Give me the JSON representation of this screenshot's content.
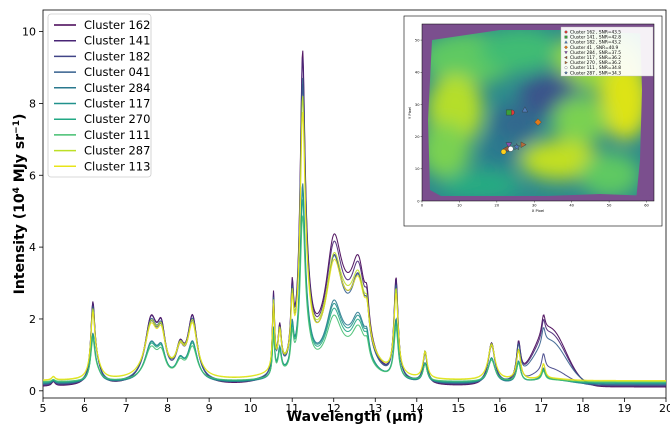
{
  "chart_data": [
    {
      "type": "line",
      "xlabel": "Wavelength (μm)",
      "ylabel_main": "Intensity (10",
      "ylabel_sup1": "4",
      "ylabel_unit": " MJy sr",
      "ylabel_sup2": "−1",
      "ylabel_close": ")",
      "xlim": [
        5,
        20
      ],
      "ylim": [
        -0.2,
        10.6
      ],
      "xticks": [
        5,
        6,
        7,
        8,
        9,
        10,
        11,
        12,
        13,
        14,
        15,
        16,
        17,
        18,
        19,
        20
      ],
      "yticks": [
        0,
        2,
        4,
        6,
        8,
        10
      ],
      "legend_position": "top-left",
      "series": [
        {
          "name": "Cluster 162",
          "color": "#440154",
          "scale": 1.0,
          "plateau": 0.55,
          "broad": 1.15,
          "long": 1.6
        },
        {
          "name": "Cluster 141",
          "color": "#482475",
          "scale": 0.98,
          "plateau": 0.5,
          "broad": 1.0,
          "long": 1.45
        },
        {
          "name": "Cluster 182",
          "color": "#414487",
          "scale": 0.9,
          "plateau": 0.45,
          "broad": 0.85,
          "long": 0.45
        },
        {
          "name": "Cluster 041",
          "color": "#355f8d",
          "scale": 0.92,
          "plateau": 0.42,
          "broad": 0.75,
          "long": 1.2
        },
        {
          "name": "Cluster 284",
          "color": "#2a788e",
          "scale": 0.6,
          "plateau": 0.3,
          "broad": 0.45,
          "long": 0.15
        },
        {
          "name": "Cluster 117",
          "color": "#21918c",
          "scale": 0.58,
          "plateau": 0.28,
          "broad": 0.4,
          "long": 0.1
        },
        {
          "name": "Cluster 270",
          "color": "#22a884",
          "scale": 0.55,
          "plateau": 0.25,
          "broad": 0.35,
          "long": 0.08
        },
        {
          "name": "Cluster 111",
          "color": "#44bf70",
          "scale": 0.5,
          "plateau": 0.22,
          "broad": 0.3,
          "long": 0.05
        },
        {
          "name": "Cluster 287",
          "color": "#bddf26",
          "scale": 0.85,
          "plateau": 0.45,
          "broad": 0.95,
          "long": 0.05
        },
        {
          "name": "Cluster 113",
          "color": "#e8e419",
          "scale": 0.8,
          "plateau": 0.42,
          "broad": 0.9,
          "long": 0.05
        }
      ],
      "peaks": [
        {
          "x": 5.25,
          "h": 0.12,
          "w": 0.05
        },
        {
          "x": 6.2,
          "h": 2.1,
          "w": 0.06
        },
        {
          "x": 6.3,
          "h": 0.4,
          "w": 0.12
        },
        {
          "x": 7.6,
          "h": 1.7,
          "w": 0.18
        },
        {
          "x": 7.85,
          "h": 1.2,
          "w": 0.12
        },
        {
          "x": 8.3,
          "h": 0.8,
          "w": 0.12
        },
        {
          "x": 8.6,
          "h": 1.8,
          "w": 0.14
        },
        {
          "x": 10.55,
          "h": 2.2,
          "w": 0.03
        },
        {
          "x": 10.7,
          "h": 1.2,
          "w": 0.05
        },
        {
          "x": 11.0,
          "h": 1.8,
          "w": 0.04
        },
        {
          "x": 11.25,
          "h": 7.8,
          "w": 0.07
        },
        {
          "x": 11.35,
          "h": 1.2,
          "w": 0.15
        },
        {
          "x": 12.0,
          "h": 2.5,
          "w": 0.22
        },
        {
          "x": 12.6,
          "h": 2.0,
          "w": 0.2
        },
        {
          "x": 12.8,
          "h": 0.8,
          "w": 0.06
        },
        {
          "x": 13.5,
          "h": 2.8,
          "w": 0.06
        },
        {
          "x": 14.2,
          "h": 0.9,
          "w": 0.06
        },
        {
          "x": 15.8,
          "h": 1.2,
          "w": 0.1
        },
        {
          "x": 16.45,
          "h": 1.0,
          "w": 0.06
        },
        {
          "x": 17.05,
          "h": 0.5,
          "w": 0.05
        }
      ]
    },
    {
      "type": "heatmap",
      "title": "",
      "xlabel": "X Pixel",
      "ylabel": "Y Pixel",
      "xticks": [
        0,
        10,
        20,
        30,
        40,
        50,
        60
      ],
      "yticks": [
        0,
        10,
        20,
        30,
        40,
        50
      ],
      "xlim": [
        0,
        62
      ],
      "ylim": [
        0,
        55
      ],
      "colormap": "viridis",
      "legend_position": "top-right",
      "markers": [
        {
          "label": "Cluster 162 , SNR=43.5",
          "x": 24,
          "y": 27.5,
          "shape": "circle",
          "color": "#e03a3a"
        },
        {
          "label": "Cluster 141 , SNR=42.8",
          "x": 23.2,
          "y": 27.5,
          "shape": "square",
          "color": "#3aa03a"
        },
        {
          "label": "Cluster 182 , SNR=43.2",
          "x": 27.5,
          "y": 28.3,
          "shape": "triangle-up",
          "color": "#4f7ab8"
        },
        {
          "label": "Cluster 41 , SNR=40.9",
          "x": 31,
          "y": 24.5,
          "shape": "diamond",
          "color": "#e07a1a"
        },
        {
          "label": "Cluster 284 , SNR=37.5",
          "x": 23.2,
          "y": 17.5,
          "shape": "triangle-down",
          "color": "#8a4fb0"
        },
        {
          "label": "Cluster 117 , SNR=36.2",
          "x": 22.5,
          "y": 16.2,
          "shape": "triangle-left",
          "color": "#9a5a3a"
        },
        {
          "label": "Cluster 270 , SNR=36.2",
          "x": 27,
          "y": 17.5,
          "shape": "triangle-right",
          "color": "#b36b3a"
        },
        {
          "label": "Cluster 111 , SNR=34.8",
          "x": 23.7,
          "y": 16.2,
          "shape": "circle",
          "color": "#ffffff"
        },
        {
          "label": "Cluster 287 , SNR=34.3",
          "x": 25.3,
          "y": 16.8,
          "shape": "star",
          "color": "#4f7ab8"
        },
        {
          "label": "",
          "x": 21.8,
          "y": 15.3,
          "shape": "circle",
          "color": "#ffd21a"
        }
      ]
    }
  ]
}
